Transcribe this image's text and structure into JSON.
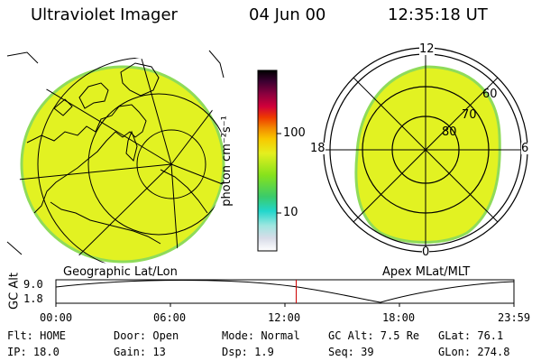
{
  "header": {
    "instrument": "Ultraviolet Imager",
    "date": "04 Jun 00",
    "time": "12:35:18 UT"
  },
  "colorbar": {
    "label": "photon cm⁻²s⁻¹",
    "tick_100": "100",
    "tick_10": "10"
  },
  "maps": {
    "left_label": "Geographic Lat/Lon",
    "right_label": "Apex MLat/MLT",
    "mlt_12": "12",
    "mlt_18": "18",
    "mlt_6": "6",
    "mlt_0": "0",
    "lat_60": "60",
    "lat_70": "70",
    "lat_80": "80"
  },
  "altitude_plot": {
    "ylabel": "GC Alt",
    "y_top": "9.0",
    "y_bottom": "1.8",
    "x_ticks": [
      "00:00",
      "06:00",
      "12:00",
      "18:00",
      "23:59"
    ],
    "marker_hour": 12.59
  },
  "status": {
    "flt": "Flt: HOME",
    "ip": "IP: 18.0",
    "door": "Door: Open",
    "gain": "Gain: 13",
    "mode": "Mode: Normal",
    "dsp": "Dsp:   1.9",
    "gc_alt": "GC Alt: 7.5 Re",
    "seq": "Seq: 39",
    "glat": "GLat:  76.1",
    "glon": "GLon: 274.8"
  },
  "colors": {
    "aurora_fill": "#e2f222",
    "aurora_edge": "#8fdb5a",
    "marker": "#cc0000"
  }
}
